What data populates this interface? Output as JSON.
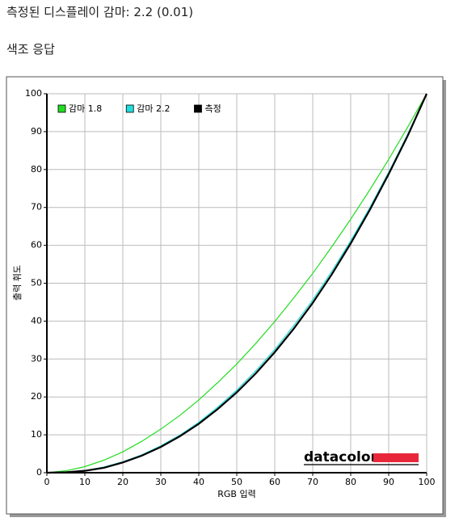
{
  "header": {
    "title": "측정된 디스플레이 감마: 2.2 (0.01)",
    "section": "색조 응답"
  },
  "chart_data": {
    "type": "line",
    "x_label": "RGB 입력",
    "y_label": "출력 휘도",
    "watermark": "datacolor",
    "x": [
      0,
      5,
      10,
      15,
      20,
      25,
      30,
      35,
      40,
      45,
      50,
      55,
      60,
      65,
      70,
      75,
      80,
      85,
      90,
      95,
      100
    ],
    "series": [
      {
        "name": "감마 1.8",
        "color": "#22dd22",
        "values": [
          0,
          0.5,
          1.6,
          3.3,
          5.5,
          8.3,
          11.5,
          15.1,
          19.2,
          23.8,
          28.7,
          34.1,
          39.9,
          46.1,
          52.6,
          59.6,
          66.9,
          74.6,
          82.7,
          91.2,
          100
        ]
      },
      {
        "name": "감마 2.2",
        "color": "#22dddd",
        "values": [
          0,
          0.1,
          0.6,
          1.5,
          2.9,
          4.7,
          7.1,
          9.9,
          13.3,
          17.3,
          21.8,
          26.9,
          32.5,
          38.8,
          45.6,
          53.1,
          61.2,
          69.9,
          79.3,
          89.3,
          100
        ]
      },
      {
        "name": "측정",
        "color": "#000000",
        "values": [
          0,
          0.1,
          0.5,
          1.3,
          2.7,
          4.5,
          6.8,
          9.6,
          12.9,
          16.8,
          21.2,
          26.2,
          31.8,
          38.0,
          44.8,
          52.3,
          60.5,
          69.3,
          78.8,
          88.9,
          100
        ]
      }
    ],
    "xlim": [
      0,
      100
    ],
    "ylim": [
      0,
      100
    ],
    "xticks": [
      0,
      10,
      20,
      30,
      40,
      50,
      60,
      70,
      80,
      90,
      100
    ],
    "yticks": [
      0,
      10,
      20,
      30,
      40,
      50,
      60,
      70,
      80,
      90,
      100
    ],
    "grid": true,
    "legend": "upper left"
  }
}
